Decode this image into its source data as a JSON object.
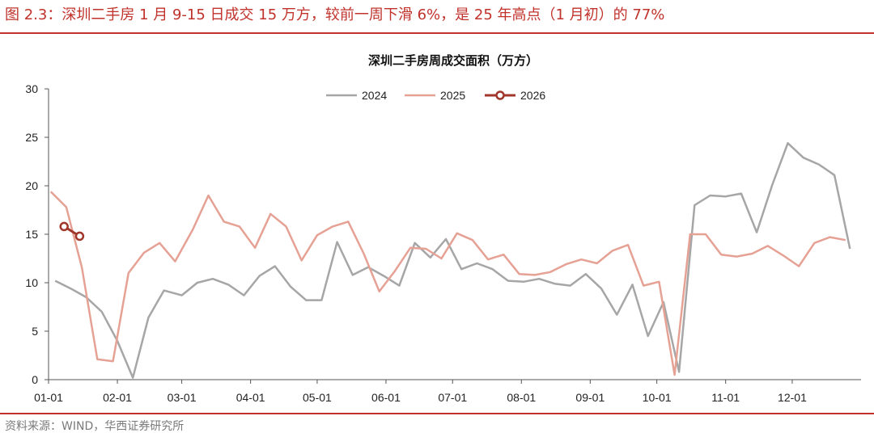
{
  "figure": {
    "caption": "图 2.3：深圳二手房 1 月 9-15 日成交 15 万方，较前一周下滑 6%，是 25 年高点（1 月初）的 77%",
    "source": "资料来源：WIND，华西证券研究所"
  },
  "colors": {
    "accent": "#c0322b",
    "s2024": "#a6a6a6",
    "s2025": "#e6a195",
    "s2026": "#a0372a"
  },
  "chart_data": {
    "type": "line",
    "title": "深圳二手房周成交面积（万方）",
    "xlabel": "",
    "ylabel": "",
    "ylim": [
      0,
      30
    ],
    "yticks": [
      "0",
      "5",
      "10",
      "15",
      "20",
      "25",
      "30"
    ],
    "xticks": [
      "01-01",
      "02-01",
      "03-01",
      "04-01",
      "05-01",
      "06-01",
      "07-01",
      "08-01",
      "09-01",
      "10-01",
      "11-01",
      "12-01"
    ],
    "grid": false,
    "legend": "top-center",
    "series": [
      {
        "name": "2024",
        "x": [
          "01-04",
          "01-11",
          "01-18",
          "01-25",
          "02-01",
          "02-08",
          "02-15",
          "02-22",
          "03-01",
          "03-08",
          "03-15",
          "03-22",
          "03-29",
          "04-05",
          "04-12",
          "04-19",
          "04-26",
          "05-03",
          "05-10",
          "05-17",
          "05-24",
          "05-31",
          "06-07",
          "06-14",
          "06-21",
          "06-28",
          "07-05",
          "07-12",
          "07-19",
          "07-26",
          "08-02",
          "08-09",
          "08-16",
          "08-23",
          "08-30",
          "09-06",
          "09-13",
          "09-20",
          "09-27",
          "10-04",
          "10-11",
          "10-18",
          "10-25",
          "11-01",
          "11-08",
          "11-15",
          "11-22",
          "11-29",
          "12-06",
          "12-13",
          "12-20",
          "12-27"
        ],
        "values": [
          10.2,
          9.4,
          8.5,
          7.0,
          4.0,
          0.2,
          6.4,
          9.2,
          8.7,
          10.0,
          10.4,
          9.8,
          8.7,
          10.7,
          11.7,
          9.6,
          8.2,
          8.2,
          14.2,
          10.8,
          11.6,
          10.7,
          9.7,
          14.1,
          12.6,
          14.5,
          11.4,
          12.0,
          11.4,
          10.2,
          10.1,
          10.4,
          9.9,
          9.7,
          10.9,
          9.4,
          6.7,
          9.8,
          4.5,
          8.0,
          0.8,
          18.0,
          19.0,
          18.9,
          19.2,
          15.2,
          20.1,
          24.4,
          22.9,
          22.2,
          21.1,
          13.5
        ]
      },
      {
        "name": "2025",
        "x": [
          "01-02",
          "01-09",
          "01-16",
          "01-23",
          "01-30",
          "02-06",
          "02-13",
          "02-20",
          "02-27",
          "03-06",
          "03-13",
          "03-20",
          "03-27",
          "04-03",
          "04-10",
          "04-17",
          "04-24",
          "05-01",
          "05-08",
          "05-15",
          "05-22",
          "05-29",
          "06-05",
          "06-12",
          "06-19",
          "06-26",
          "07-03",
          "07-10",
          "07-17",
          "07-24",
          "07-31",
          "08-07",
          "08-14",
          "08-21",
          "08-28",
          "09-04",
          "09-11",
          "09-18",
          "09-25",
          "10-02",
          "10-09",
          "10-16",
          "10-23",
          "10-30",
          "11-06",
          "11-13",
          "11-20",
          "11-27",
          "12-04",
          "12-11",
          "12-18",
          "12-25"
        ],
        "values": [
          19.4,
          17.8,
          11.6,
          2.1,
          1.9,
          11.0,
          13.1,
          14.1,
          12.2,
          15.5,
          19.0,
          16.3,
          15.8,
          13.6,
          17.1,
          15.8,
          12.3,
          14.9,
          15.8,
          16.3,
          13.0,
          9.1,
          11.2,
          13.6,
          13.5,
          12.5,
          15.1,
          14.4,
          12.4,
          12.9,
          10.9,
          10.8,
          11.1,
          11.9,
          12.4,
          12.0,
          13.3,
          13.9,
          9.7,
          10.1,
          0.5,
          15.0,
          15.0,
          12.9,
          12.7,
          13.0,
          13.8,
          12.8,
          11.7,
          14.1,
          14.7,
          14.4
        ]
      },
      {
        "name": "2026",
        "x": [
          "01-08",
          "01-15"
        ],
        "values": [
          15.8,
          14.8
        ]
      }
    ]
  }
}
